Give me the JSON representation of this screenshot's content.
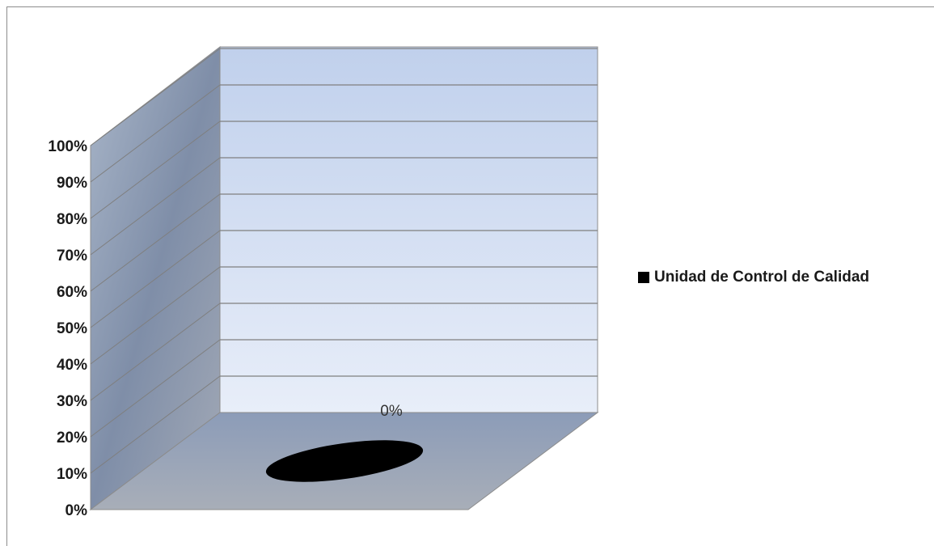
{
  "chart_data": {
    "type": "bar",
    "three_d": true,
    "categories": [
      ""
    ],
    "series": [
      {
        "name": "Unidad de Control de Calidad",
        "values": [
          0
        ],
        "color": "#000000"
      }
    ],
    "data_labels": [
      "0%"
    ],
    "ylim": [
      0,
      100
    ],
    "ytick_values": [
      0,
      10,
      20,
      30,
      40,
      50,
      60,
      70,
      80,
      90,
      100
    ],
    "ytick_labels": [
      "0%",
      "10%",
      "20%",
      "30%",
      "40%",
      "50%",
      "60%",
      "70%",
      "80%",
      "90%",
      "100%"
    ],
    "grid": true,
    "legend_position": "right",
    "colors": {
      "back_wall_top": "#c0d0ec",
      "back_wall_bottom": "#e8eef9",
      "side_wall": "#8f9eb5",
      "floor": "#9daac0",
      "gridline": "#7f7f7f"
    }
  }
}
